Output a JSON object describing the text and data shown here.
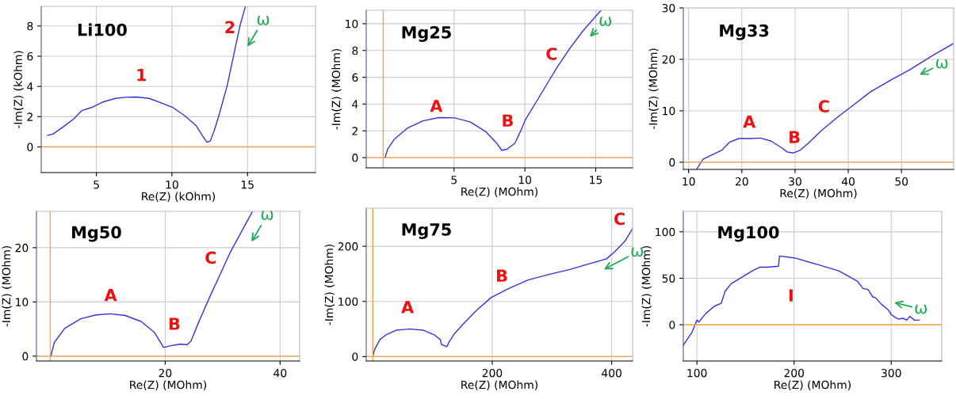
{
  "chart_data": [
    {
      "type": "line",
      "title": "Li100",
      "xlabel": "Re(Z) (kOhm)",
      "ylabel": "-Im(Z) (kOhm)",
      "xlim": [
        1.35,
        19.5
      ],
      "ylim": [
        -1.7,
        9.3
      ],
      "xticks": [
        5,
        10,
        15
      ],
      "yticks": [
        0,
        2,
        4,
        6,
        8
      ],
      "grid": true,
      "color": "#3333dd",
      "x": [
        1.78,
        2.13,
        2.81,
        3.5,
        4.02,
        4.71,
        5.4,
        6.26,
        6.94,
        7.63,
        8.49,
        9.18,
        10.04,
        10.9,
        11.59,
        12.02,
        12.31,
        12.54,
        12.8,
        13.14,
        13.66,
        14.17,
        14.52,
        14.86
      ],
      "values": [
        0.77,
        0.85,
        1.33,
        1.85,
        2.39,
        2.62,
        2.96,
        3.21,
        3.28,
        3.3,
        3.21,
        2.96,
        2.62,
        2.02,
        1.42,
        0.74,
        0.31,
        0.39,
        1.08,
        2.19,
        4.07,
        6.46,
        8.09,
        9.28
      ],
      "ref_lines": [
        {
          "axis": "y",
          "value": 0,
          "color": "#f5a04a"
        }
      ],
      "annotations": [
        "1",
        "2",
        "ω"
      ]
    },
    {
      "type": "line",
      "title": "Mg25",
      "xlabel": "Re(Z) (MOhm)",
      "ylabel": "-Im(Z) (MOhm)",
      "xlim": [
        -1.2,
        17.6
      ],
      "ylim": [
        -0.76,
        11.0
      ],
      "xticks": [
        5,
        10,
        15
      ],
      "yticks": [
        0,
        2,
        4,
        6,
        8,
        10
      ],
      "grid": true,
      "color": "#3333dd",
      "x": [
        0.13,
        0.31,
        0.78,
        1.7,
        2.81,
        3.93,
        5.04,
        6.15,
        7.26,
        8.0,
        8.37,
        8.74,
        9.3,
        9.67,
        10.04,
        11.15,
        12.26,
        13.19,
        14.11,
        15.37
      ],
      "values": [
        0,
        0.63,
        1.37,
        2.2,
        2.75,
        2.99,
        2.97,
        2.66,
        1.92,
        1.09,
        0.54,
        0.63,
        1.09,
        1.92,
        2.84,
        4.78,
        6.72,
        8.19,
        9.48,
        11.0
      ],
      "ref_lines": [
        {
          "axis": "y",
          "value": 0,
          "color": "#f5a04a"
        },
        {
          "axis": "x",
          "value": 0,
          "color": "#f5a04a"
        }
      ],
      "annotations": [
        "A",
        "B",
        "C",
        "ω"
      ]
    },
    {
      "type": "line",
      "title": "Mg33",
      "xlabel": "Re(Z) (MOhm)",
      "ylabel": "-Im(Z) (MOhm)",
      "xlim": [
        9.0,
        59.8
      ],
      "ylim": [
        -1.4,
        30
      ],
      "xticks": [
        10,
        20,
        30,
        40,
        50
      ],
      "yticks": [
        0,
        10,
        20,
        30
      ],
      "grid": true,
      "color": "#3333dd",
      "x": [
        11.5,
        12.7,
        14.7,
        16.2,
        17.7,
        19.4,
        21.6,
        23.5,
        25.5,
        27.5,
        28.5,
        29.7,
        30.9,
        32.4,
        34.9,
        37.8,
        40.8,
        44.2,
        48.2,
        51.6,
        56.1,
        59.8
      ],
      "values": [
        -1.4,
        0.6,
        1.6,
        2.3,
        3.9,
        4.6,
        4.6,
        4.7,
        4.1,
        2.8,
        2.0,
        1.8,
        2.3,
        3.6,
        6.1,
        8.6,
        11.0,
        13.7,
        16.1,
        18.0,
        20.9,
        23.1
      ],
      "ref_lines": [
        {
          "axis": "y",
          "value": 0,
          "color": "#f5a04a"
        }
      ],
      "annotations": [
        "A",
        "B",
        "C",
        "ω"
      ]
    },
    {
      "type": "line",
      "title": "Mg50",
      "xlabel": "Re(Z) (MOhm)",
      "ylabel": "-Im(Z) (MOhm)",
      "xlim": [
        -2.4,
        43.4
      ],
      "ylim": [
        -0.9,
        26.7
      ],
      "xticks": [
        20,
        40
      ],
      "yticks": [
        0,
        10,
        20
      ],
      "grid": true,
      "color": "#3333dd",
      "x": [
        0.1,
        0.7,
        2.5,
        5.3,
        8.0,
        10.5,
        13.0,
        15.8,
        18.1,
        19.2,
        19.7,
        20.8,
        22.6,
        23.8,
        24.5,
        25.8,
        27.7,
        29.5,
        31.3,
        33.2,
        35.2
      ],
      "values": [
        0,
        2.5,
        5.1,
        6.9,
        7.6,
        7.8,
        7.5,
        6.4,
        4.4,
        2.5,
        1.6,
        1.9,
        2.2,
        2.1,
        2.8,
        6.2,
        10.8,
        14.9,
        19.1,
        22.8,
        26.7
      ],
      "ref_lines": [
        {
          "axis": "y",
          "value": 0,
          "color": "#f5a04a"
        },
        {
          "axis": "x",
          "value": 0,
          "color": "#f5a04a"
        }
      ],
      "annotations": [
        "A",
        "B",
        "C",
        "ω"
      ]
    },
    {
      "type": "line",
      "title": "Mg75",
      "xlabel": "Re(Z) (MOhm)",
      "ylabel": "-Im(Z) (MOhm)",
      "xlim": [
        -11,
        435
      ],
      "ylim": [
        -8,
        269
      ],
      "xticks": [
        200,
        400
      ],
      "yticks": [
        0,
        100,
        200
      ],
      "grid": true,
      "color": "#3333dd",
      "x": [
        0,
        3,
        12,
        23,
        40,
        62,
        84,
        102,
        113,
        115,
        124,
        128,
        137,
        154,
        172,
        198,
        225,
        260,
        295,
        330,
        365,
        391,
        404,
        422,
        435
      ],
      "values": [
        0,
        13,
        31,
        40,
        48,
        50,
        48,
        40,
        31,
        22,
        18,
        27,
        42,
        62,
        82,
        107,
        122,
        139,
        149,
        158,
        169,
        177,
        189,
        209,
        232
      ],
      "ref_lines": [
        {
          "axis": "y",
          "value": 0,
          "color": "#f5a04a"
        },
        {
          "axis": "x",
          "value": 0,
          "color": "#f5a04a"
        }
      ],
      "annotations": [
        "A",
        "B",
        "C",
        "ω"
      ]
    },
    {
      "type": "line",
      "title": "Mg100",
      "xlabel": "Re(Z) (MOhm)",
      "ylabel": "-Im(Z) (MOhm)",
      "xlim": [
        86,
        352
      ],
      "ylim": [
        -39,
        122
      ],
      "xticks": [
        100,
        200,
        300
      ],
      "yticks": [
        0,
        50,
        100
      ],
      "grid": true,
      "color": "#3333dd",
      "x": [
        86,
        95,
        100,
        102,
        109,
        118,
        125,
        129,
        135,
        146,
        157,
        165,
        172,
        184,
        185,
        200,
        227,
        246,
        265,
        271,
        276,
        281,
        284,
        290,
        297,
        300,
        304,
        308,
        312,
        316,
        319,
        324,
        329
      ],
      "values": [
        -22,
        -8,
        5,
        3,
        12,
        20,
        23,
        36,
        44,
        51,
        58,
        62,
        62,
        63,
        74,
        72,
        64,
        58,
        47,
        39,
        38,
        30,
        29,
        22,
        16,
        11,
        8,
        6,
        7,
        5,
        9,
        5,
        5
      ],
      "ref_lines": [
        {
          "axis": "y",
          "value": 0,
          "color": "#f5a04a"
        }
      ],
      "annotations": [
        "I",
        "ω"
      ]
    }
  ]
}
